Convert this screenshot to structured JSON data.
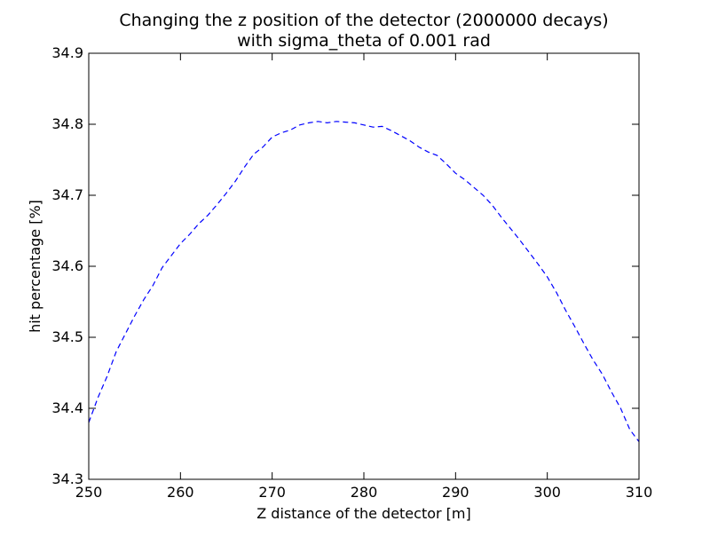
{
  "chart_data": {
    "type": "line",
    "title_lines": [
      "Changing the z position of the detector (2000000 decays)",
      "with sigma_theta of 0.001 rad"
    ],
    "xlabel": "Z distance of the detector [m]",
    "ylabel": "hit percentage [%]",
    "xlim": [
      250,
      310
    ],
    "ylim": [
      34.3,
      34.9
    ],
    "x_ticks": [
      250,
      260,
      270,
      280,
      290,
      300,
      310
    ],
    "x_tick_labels": [
      "250",
      "260",
      "270",
      "280",
      "290",
      "300",
      "310"
    ],
    "y_ticks": [
      34.3,
      34.4,
      34.5,
      34.6,
      34.7,
      34.8,
      34.9
    ],
    "y_tick_labels": [
      "34.3",
      "34.4",
      "34.5",
      "34.6",
      "34.7",
      "34.8",
      "34.9"
    ],
    "grid": false,
    "line_color": "#0000ff",
    "line_style": "dashed",
    "series": [
      {
        "x": [
          250,
          251,
          252,
          253,
          254,
          255,
          256,
          257,
          258,
          259,
          260,
          261,
          262,
          263,
          264,
          265,
          266,
          267,
          268,
          269,
          270,
          271,
          272,
          273,
          274,
          275,
          276,
          277,
          278,
          279,
          280,
          281,
          282,
          283,
          284,
          285,
          286,
          287,
          288,
          289,
          290,
          291,
          292,
          293,
          294,
          295,
          296,
          297,
          298,
          299,
          300,
          301,
          302,
          303,
          304,
          305,
          306,
          307,
          308,
          309,
          310
        ],
        "y": [
          34.38,
          34.415,
          34.445,
          34.48,
          34.505,
          34.53,
          34.553,
          34.573,
          34.598,
          34.615,
          34.632,
          34.645,
          34.66,
          34.672,
          34.687,
          34.703,
          34.72,
          34.74,
          34.758,
          34.768,
          34.782,
          34.788,
          34.792,
          34.799,
          34.802,
          34.804,
          34.802,
          34.804,
          34.803,
          34.802,
          34.799,
          34.796,
          34.797,
          34.791,
          34.784,
          34.777,
          34.768,
          34.761,
          34.756,
          34.744,
          34.731,
          34.722,
          34.711,
          34.7,
          34.686,
          34.669,
          34.653,
          34.637,
          34.62,
          34.603,
          34.585,
          34.563,
          34.538,
          34.515,
          34.491,
          34.468,
          34.448,
          34.423,
          34.4,
          34.37,
          34.353
        ]
      }
    ]
  }
}
